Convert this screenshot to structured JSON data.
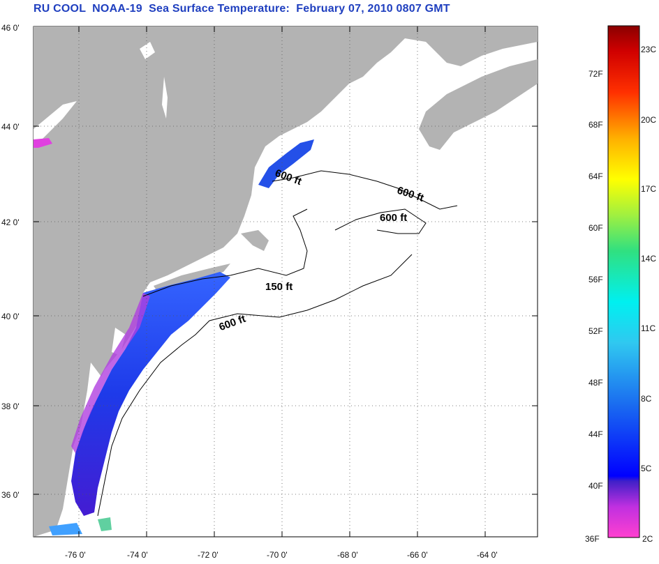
{
  "title": "RU COOL  NOAA-19  Sea Surface Temperature:  February 07, 2010 0807 GMT",
  "map": {
    "lat_labels": [
      "46 0'",
      "44 0'",
      "42 0'",
      "40 0'",
      "38 0'",
      "36 0'"
    ],
    "lon_labels": [
      "-76 0'",
      "-74 0'",
      "-72 0'",
      "-70 0'",
      "-68 0'",
      "-66 0'",
      "-64 0'"
    ],
    "contour_labels": [
      "600 ft",
      "600 ft",
      "600 ft",
      "150 ft",
      "600 ft"
    ],
    "land_color": "#b3b3b3",
    "ocean_color": "#ffffff"
  },
  "colorbar": {
    "fahrenheit_labels": [
      "72F",
      "68F",
      "64F",
      "60F",
      "56F",
      "52F",
      "48F",
      "44F",
      "40F",
      "36F"
    ],
    "celsius_labels": [
      "23C",
      "20C",
      "17C",
      "14C",
      "11C",
      "8C",
      "5C",
      "2C"
    ]
  }
}
